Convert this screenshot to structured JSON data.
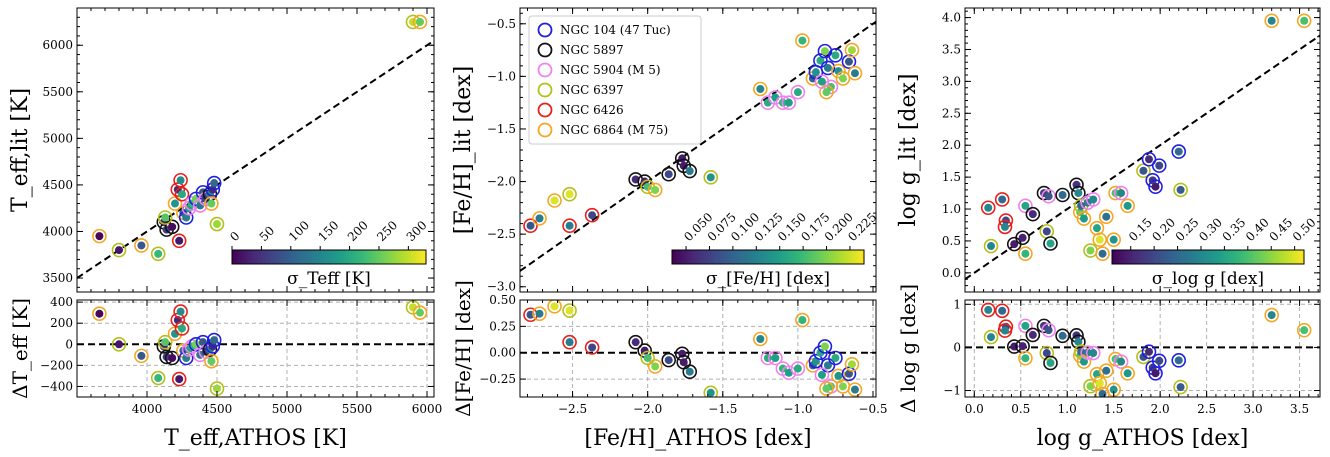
{
  "legend_entries": [
    {
      "name": "NGC 104 (47 Tuc)",
      "color": "#1f1fe0"
    },
    {
      "name": "NGC 5897",
      "color": "#111111"
    },
    {
      "name": "NGC 5904 (M 5)",
      "color": "#ee82ee"
    },
    {
      "name": "NGC 6397",
      "color": "#b5bf1a"
    },
    {
      "name": "NGC 6426",
      "color": "#e8201a"
    },
    {
      "name": "NGC 6864 (M 75)",
      "color": "#f5a623"
    }
  ],
  "colormap": "viridis",
  "chart_data": [
    {
      "type": "scatter",
      "panel": "Teff",
      "xlabel": "T_eff,ATHOS [K]",
      "ylabel": "T_eff,lit [K]",
      "reslabel": "ΔT_eff [K]",
      "cbar_label": "σ_Teff [K]",
      "xlim": [
        3500,
        6050
      ],
      "ylim": [
        3350,
        6400
      ],
      "res_ylim": [
        -500,
        420
      ],
      "x_ticks": [
        "4000",
        "4500",
        "5000",
        "5500",
        "6000"
      ],
      "y_ticks": [
        "3500",
        "4000",
        "4500",
        "5000",
        "5500",
        "6000"
      ],
      "res_ticks": [
        "400",
        "200",
        "0",
        "−200",
        "−400"
      ],
      "cbar_ticks": [
        "0",
        "50",
        "100",
        "150",
        "200",
        "250",
        "300"
      ],
      "cbar_range": [
        0,
        330
      ],
      "points": [
        {
          "x": 3660,
          "y": 3950,
          "c": 5,
          "s": 5
        },
        {
          "x": 3800,
          "y": 3800,
          "c": 20,
          "s": 3
        },
        {
          "x": 3960,
          "y": 3850,
          "c": 90,
          "s": 5
        },
        {
          "x": 4080,
          "y": 3760,
          "c": 220,
          "s": 3
        },
        {
          "x": 4120,
          "y": 4100,
          "c": 30,
          "s": 1
        },
        {
          "x": 4140,
          "y": 4020,
          "c": 60,
          "s": 1
        },
        {
          "x": 4180,
          "y": 4050,
          "c": 10,
          "s": 1
        },
        {
          "x": 4130,
          "y": 4150,
          "c": 240,
          "s": 3
        },
        {
          "x": 4200,
          "y": 4300,
          "c": 170,
          "s": 5
        },
        {
          "x": 4220,
          "y": 4450,
          "c": 40,
          "s": 4
        },
        {
          "x": 4240,
          "y": 4550,
          "c": 160,
          "s": 4
        },
        {
          "x": 4250,
          "y": 4400,
          "c": 200,
          "s": 4
        },
        {
          "x": 4230,
          "y": 3900,
          "c": 20,
          "s": 4
        },
        {
          "x": 4260,
          "y": 4200,
          "c": 100,
          "s": 5
        },
        {
          "x": 4280,
          "y": 4150,
          "c": 140,
          "s": 0
        },
        {
          "x": 4300,
          "y": 4250,
          "c": 180,
          "s": 2
        },
        {
          "x": 4320,
          "y": 4300,
          "c": 220,
          "s": 2
        },
        {
          "x": 4350,
          "y": 4350,
          "c": 260,
          "s": 0
        },
        {
          "x": 4380,
          "y": 4280,
          "c": 130,
          "s": 2
        },
        {
          "x": 4400,
          "y": 4420,
          "c": 90,
          "s": 0
        },
        {
          "x": 4420,
          "y": 4350,
          "c": 60,
          "s": 2
        },
        {
          "x": 4450,
          "y": 4400,
          "c": 150,
          "s": 1
        },
        {
          "x": 4470,
          "y": 4450,
          "c": 40,
          "s": 0
        },
        {
          "x": 4480,
          "y": 4520,
          "c": 110,
          "s": 0
        },
        {
          "x": 4460,
          "y": 4300,
          "c": 250,
          "s": 5
        },
        {
          "x": 4500,
          "y": 4080,
          "c": 280,
          "s": 3
        },
        {
          "x": 5900,
          "y": 6250,
          "c": 300,
          "s": 3
        },
        {
          "x": 5950,
          "y": 6250,
          "c": 250,
          "s": 5
        }
      ]
    },
    {
      "type": "scatter",
      "panel": "FeH",
      "xlabel": "[Fe/H]_ATHOS [dex]",
      "ylabel": "[Fe/H]_lit [dex]",
      "reslabel": "Δ[Fe/H] [dex]",
      "cbar_label": "σ_[Fe/H] [dex]",
      "xlim": [
        -2.85,
        -0.48
      ],
      "ylim": [
        -3.05,
        -0.35
      ],
      "res_ylim": [
        -0.42,
        0.5
      ],
      "x_ticks": [
        "−2.5",
        "−2.0",
        "−1.5",
        "−1.0",
        "−0.5"
      ],
      "y_ticks": [
        "−3.0",
        "−2.5",
        "−2.0",
        "−1.5",
        "−1.0",
        "−0.5"
      ],
      "res_ticks": [
        "0.50",
        "0.25",
        "0.00",
        "−0.25"
      ],
      "cbar_ticks": [
        "0.050",
        "0.075",
        "0.100",
        "0.125",
        "0.150",
        "0.175",
        "0.200",
        "0.225"
      ],
      "cbar_range": [
        0.035,
        0.24
      ],
      "points": [
        {
          "x": -2.78,
          "y": -2.42,
          "c": 0.09,
          "s": 4
        },
        {
          "x": -2.72,
          "y": -2.35,
          "c": 0.12,
          "s": 5
        },
        {
          "x": -2.62,
          "y": -2.18,
          "c": 0.23,
          "s": 5
        },
        {
          "x": -2.52,
          "y": -2.12,
          "c": 0.23,
          "s": 3
        },
        {
          "x": -2.52,
          "y": -2.42,
          "c": 0.12,
          "s": 4
        },
        {
          "x": -2.37,
          "y": -2.32,
          "c": 0.08,
          "s": 4
        },
        {
          "x": -2.08,
          "y": -1.98,
          "c": 0.06,
          "s": 1
        },
        {
          "x": -2.02,
          "y": -2.0,
          "c": 0.05,
          "s": 1
        },
        {
          "x": -2.0,
          "y": -2.05,
          "c": 0.18,
          "s": 3
        },
        {
          "x": -1.95,
          "y": -2.08,
          "c": 0.2,
          "s": 5
        },
        {
          "x": -1.86,
          "y": -1.93,
          "c": 0.08,
          "s": 1
        },
        {
          "x": -1.77,
          "y": -1.78,
          "c": 0.05,
          "s": 1
        },
        {
          "x": -1.76,
          "y": -1.85,
          "c": 0.05,
          "s": 1
        },
        {
          "x": -1.72,
          "y": -1.9,
          "c": 0.12,
          "s": 1
        },
        {
          "x": -1.58,
          "y": -1.96,
          "c": 0.14,
          "s": 3
        },
        {
          "x": -1.25,
          "y": -1.12,
          "c": 0.13,
          "s": 5
        },
        {
          "x": -1.2,
          "y": -1.25,
          "c": 0.16,
          "s": 2
        },
        {
          "x": -1.15,
          "y": -1.2,
          "c": 0.15,
          "s": 2
        },
        {
          "x": -1.1,
          "y": -1.25,
          "c": 0.17,
          "s": 2
        },
        {
          "x": -1.06,
          "y": -1.25,
          "c": 0.15,
          "s": 2
        },
        {
          "x": -1.0,
          "y": -1.15,
          "c": 0.16,
          "s": 2
        },
        {
          "x": -0.97,
          "y": -0.66,
          "c": 0.17,
          "s": 5
        },
        {
          "x": -0.9,
          "y": -1.02,
          "c": 0.1,
          "s": 5
        },
        {
          "x": -0.88,
          "y": -0.96,
          "c": 0.14,
          "s": 0
        },
        {
          "x": -0.85,
          "y": -0.85,
          "c": 0.16,
          "s": 0
        },
        {
          "x": -0.82,
          "y": -0.76,
          "c": 0.2,
          "s": 0
        },
        {
          "x": -0.8,
          "y": -0.92,
          "c": 0.12,
          "s": 0
        },
        {
          "x": -0.78,
          "y": -1.1,
          "c": 0.18,
          "s": 2
        },
        {
          "x": -0.75,
          "y": -0.8,
          "c": 0.16,
          "s": 0
        },
        {
          "x": -0.73,
          "y": -0.95,
          "c": 0.14,
          "s": 5
        },
        {
          "x": -0.7,
          "y": -1.02,
          "c": 0.2,
          "s": 5
        },
        {
          "x": -0.66,
          "y": -0.86,
          "c": 0.09,
          "s": 0
        },
        {
          "x": -0.64,
          "y": -0.75,
          "c": 0.21,
          "s": 5
        },
        {
          "x": -0.62,
          "y": -0.97,
          "c": 0.12,
          "s": 5
        },
        {
          "x": -0.81,
          "y": -1.15,
          "c": 0.19,
          "s": 5
        },
        {
          "x": -0.84,
          "y": -1.05,
          "c": 0.15,
          "s": 2
        }
      ]
    },
    {
      "type": "scatter",
      "panel": "logg",
      "xlabel": "log g_ATHOS [dex]",
      "ylabel": "log g_lit [dex]",
      "reslabel": "Δ log g [dex]",
      "cbar_label": "σ_log g [dex]",
      "xlim": [
        -0.1,
        3.72
      ],
      "ylim": [
        -0.3,
        4.15
      ],
      "res_ylim": [
        -1.15,
        1.1
      ],
      "x_ticks": [
        "0.0",
        "0.5",
        "1.0",
        "1.5",
        "2.0",
        "2.5",
        "3.0",
        "3.5"
      ],
      "y_ticks": [
        "0.0",
        "0.5",
        "1.0",
        "1.5",
        "2.0",
        "2.5",
        "3.0",
        "3.5",
        "4.0"
      ],
      "res_ticks": [
        "1",
        "0",
        "−1"
      ],
      "cbar_ticks": [
        "0.15",
        "0.20",
        "0.25",
        "0.30",
        "0.35",
        "0.40",
        "0.45",
        "0.50"
      ],
      "cbar_range": [
        0.11,
        0.52
      ],
      "points": [
        {
          "x": 0.15,
          "y": 1.02,
          "c": 0.3,
          "s": 4
        },
        {
          "x": 0.18,
          "y": 0.42,
          "c": 0.3,
          "s": 3
        },
        {
          "x": 0.3,
          "y": 1.15,
          "c": 0.25,
          "s": 4
        },
        {
          "x": 0.34,
          "y": 0.82,
          "c": 0.2,
          "s": 4
        },
        {
          "x": 0.33,
          "y": 0.72,
          "c": 0.3,
          "s": 4
        },
        {
          "x": 0.43,
          "y": 0.45,
          "c": 0.14,
          "s": 1
        },
        {
          "x": 0.52,
          "y": 0.55,
          "c": 0.15,
          "s": 1
        },
        {
          "x": 0.55,
          "y": 1.05,
          "c": 0.35,
          "s": 2
        },
        {
          "x": 0.55,
          "y": 0.3,
          "c": 0.38,
          "s": 5
        },
        {
          "x": 0.63,
          "y": 0.92,
          "c": 0.16,
          "s": 1
        },
        {
          "x": 0.75,
          "y": 1.25,
          "c": 0.18,
          "s": 1
        },
        {
          "x": 0.78,
          "y": 0.65,
          "c": 0.2,
          "s": 3
        },
        {
          "x": 0.8,
          "y": 1.2,
          "c": 0.22,
          "s": 2
        },
        {
          "x": 0.82,
          "y": 0.46,
          "c": 0.35,
          "s": 1
        },
        {
          "x": 0.95,
          "y": 1.22,
          "c": 0.25,
          "s": 1
        },
        {
          "x": 1.1,
          "y": 1.38,
          "c": 0.17,
          "s": 1
        },
        {
          "x": 1.12,
          "y": 1.25,
          "c": 0.3,
          "s": 1
        },
        {
          "x": 1.14,
          "y": 0.95,
          "c": 0.4,
          "s": 5
        },
        {
          "x": 1.15,
          "y": 1.05,
          "c": 0.25,
          "s": 3
        },
        {
          "x": 1.18,
          "y": 0.85,
          "c": 0.33,
          "s": 5
        },
        {
          "x": 1.22,
          "y": 1.1,
          "c": 0.28,
          "s": 2
        },
        {
          "x": 1.25,
          "y": 0.35,
          "c": 0.44,
          "s": 3
        },
        {
          "x": 1.28,
          "y": 1.15,
          "c": 0.3,
          "s": 2
        },
        {
          "x": 1.32,
          "y": 0.7,
          "c": 0.35,
          "s": 5
        },
        {
          "x": 1.35,
          "y": 0.52,
          "c": 0.5,
          "s": 5
        },
        {
          "x": 1.38,
          "y": 0.3,
          "c": 0.25,
          "s": 5
        },
        {
          "x": 1.42,
          "y": 0.88,
          "c": 0.26,
          "s": 5
        },
        {
          "x": 1.5,
          "y": 0.52,
          "c": 0.32,
          "s": 5
        },
        {
          "x": 1.52,
          "y": 1.25,
          "c": 0.4,
          "s": 5
        },
        {
          "x": 1.58,
          "y": 1.25,
          "c": 0.3,
          "s": 2
        },
        {
          "x": 1.65,
          "y": 1.05,
          "c": 0.33,
          "s": 5
        },
        {
          "x": 1.82,
          "y": 1.6,
          "c": 0.22,
          "s": 3
        },
        {
          "x": 1.88,
          "y": 1.78,
          "c": 0.16,
          "s": 0
        },
        {
          "x": 1.92,
          "y": 1.45,
          "c": 0.18,
          "s": 0
        },
        {
          "x": 1.95,
          "y": 1.35,
          "c": 0.14,
          "s": 0
        },
        {
          "x": 1.99,
          "y": 1.68,
          "c": 0.2,
          "s": 0
        },
        {
          "x": 2.2,
          "y": 1.9,
          "c": 0.25,
          "s": 0
        },
        {
          "x": 2.22,
          "y": 1.3,
          "c": 0.23,
          "s": 3
        },
        {
          "x": 3.2,
          "y": 3.95,
          "c": 0.3,
          "s": 5
        },
        {
          "x": 3.55,
          "y": 3.95,
          "c": 0.4,
          "s": 5
        }
      ]
    }
  ]
}
